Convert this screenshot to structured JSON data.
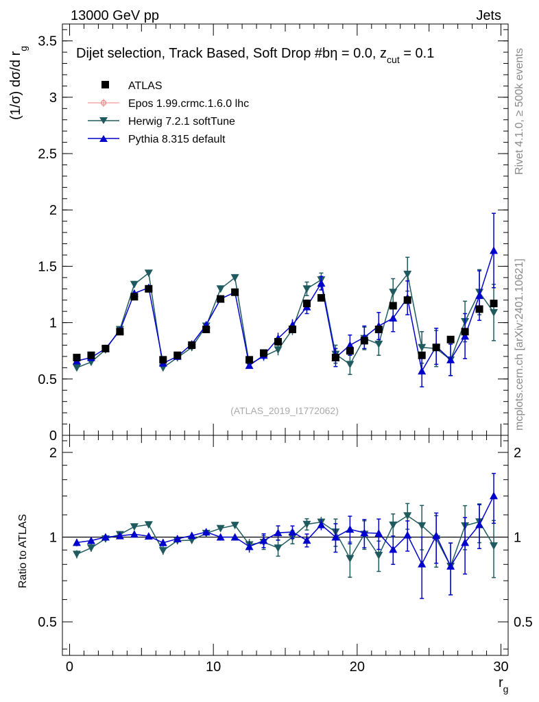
{
  "header": {
    "left": "13000 GeV pp",
    "right": "Jets"
  },
  "side": {
    "rivet": "Rivet 4.1.0, ≥ 500k events",
    "mcplots": "mcplots.cern.ch [arXiv:2401.10621]"
  },
  "chart_data": {
    "type": "scatter",
    "title": "Dijet selection, Track Based, Soft Drop #b",
    "title_suffix": "η = 0.0, z",
    "title_sub": "cut",
    "title_end": " = 0.1",
    "watermark": "(ATLAS_2019_I1772062)",
    "xlabel": "r",
    "xlabel_sub": "g",
    "ylabel": "(1/σ) dσ/d r",
    "ylabel_sub": "g",
    "ratio_ylabel": "Ratio to ATLAS",
    "xlim": [
      -0.5,
      30.5
    ],
    "ylim": [
      0,
      3.65
    ],
    "ratio_ylim": [
      0.38,
      2.3
    ],
    "x_ticks": [
      "0",
      "10",
      "20",
      "30"
    ],
    "y_ticks": [
      "0",
      "0.5",
      "1",
      "1.5",
      "2",
      "2.5",
      "3",
      "3.5"
    ],
    "ratio_y_ticks": [
      "0.5",
      "1",
      "2"
    ],
    "legend": {
      "atlas": "ATLAS",
      "epos": "Epos 1.99.crmc.1.6.0 lhc",
      "herwig": "Herwig 7.2.1 softTune",
      "pythia": "Pythia 8.315 default"
    },
    "colors": {
      "atlas": "#000000",
      "epos": "#f08080",
      "herwig": "#1f5a5f",
      "pythia": "#0000cc"
    },
    "x": [
      0.5,
      1.5,
      2.5,
      3.5,
      4.5,
      5.5,
      6.5,
      7.5,
      8.5,
      9.5,
      10.5,
      11.5,
      12.5,
      13.5,
      14.5,
      15.5,
      16.5,
      17.5,
      18.5,
      19.5,
      20.5,
      21.5,
      22.5,
      23.5,
      24.5,
      25.5,
      26.5,
      27.5,
      28.5,
      29.5
    ],
    "series": [
      {
        "name": "ATLAS",
        "values": [
          0.69,
          0.71,
          0.77,
          0.92,
          1.23,
          1.3,
          0.67,
          0.71,
          0.8,
          0.94,
          1.21,
          1.27,
          0.67,
          0.73,
          0.83,
          0.94,
          1.17,
          1.22,
          0.69,
          0.75,
          0.84,
          0.94,
          1.15,
          1.2,
          0.71,
          0.78,
          0.85,
          0.92,
          1.12,
          1.17
        ],
        "errors": [
          0.02,
          0.02,
          0.02,
          0.02,
          0.02,
          0.02,
          0.02,
          0.02,
          0.02,
          0.02,
          0.02,
          0.02,
          0.02,
          0.02,
          0.02,
          0.02,
          0.02,
          0.02,
          0.02,
          0.02,
          0.02,
          0.02,
          0.02,
          0.02,
          0.02,
          0.02,
          0.02,
          0.02,
          0.02,
          0.02
        ]
      },
      {
        "name": "Herwig 7.2.1 softTune",
        "values": [
          0.6,
          0.65,
          0.76,
          0.94,
          1.34,
          1.44,
          0.6,
          0.69,
          0.78,
          0.97,
          1.3,
          1.4,
          0.63,
          0.7,
          0.76,
          0.94,
          1.3,
          1.38,
          0.72,
          0.63,
          0.86,
          0.81,
          1.27,
          1.43,
          0.78,
          0.77,
          0.67,
          1.01,
          1.27,
          1.09
        ],
        "errors": [
          0.02,
          0.02,
          0.02,
          0.02,
          0.03,
          0.03,
          0.02,
          0.02,
          0.02,
          0.03,
          0.03,
          0.03,
          0.03,
          0.04,
          0.05,
          0.05,
          0.06,
          0.06,
          0.08,
          0.09,
          0.1,
          0.1,
          0.12,
          0.15,
          0.14,
          0.16,
          0.14,
          0.18,
          0.2,
          0.25
        ]
      },
      {
        "name": "Pythia 8.315 default",
        "values": [
          0.66,
          0.69,
          0.77,
          0.93,
          1.26,
          1.31,
          0.64,
          0.7,
          0.81,
          0.98,
          1.21,
          1.27,
          0.62,
          0.71,
          0.86,
          0.98,
          1.14,
          1.35,
          0.69,
          0.8,
          0.87,
          0.97,
          1.04,
          1.22,
          0.57,
          0.79,
          0.67,
          0.88,
          1.24,
          1.64
        ],
        "errors": [
          0.02,
          0.02,
          0.02,
          0.02,
          0.03,
          0.03,
          0.02,
          0.02,
          0.02,
          0.03,
          0.03,
          0.03,
          0.03,
          0.04,
          0.05,
          0.05,
          0.06,
          0.06,
          0.08,
          0.09,
          0.1,
          0.12,
          0.12,
          0.15,
          0.14,
          0.16,
          0.14,
          0.2,
          0.22,
          0.33
        ]
      }
    ]
  }
}
